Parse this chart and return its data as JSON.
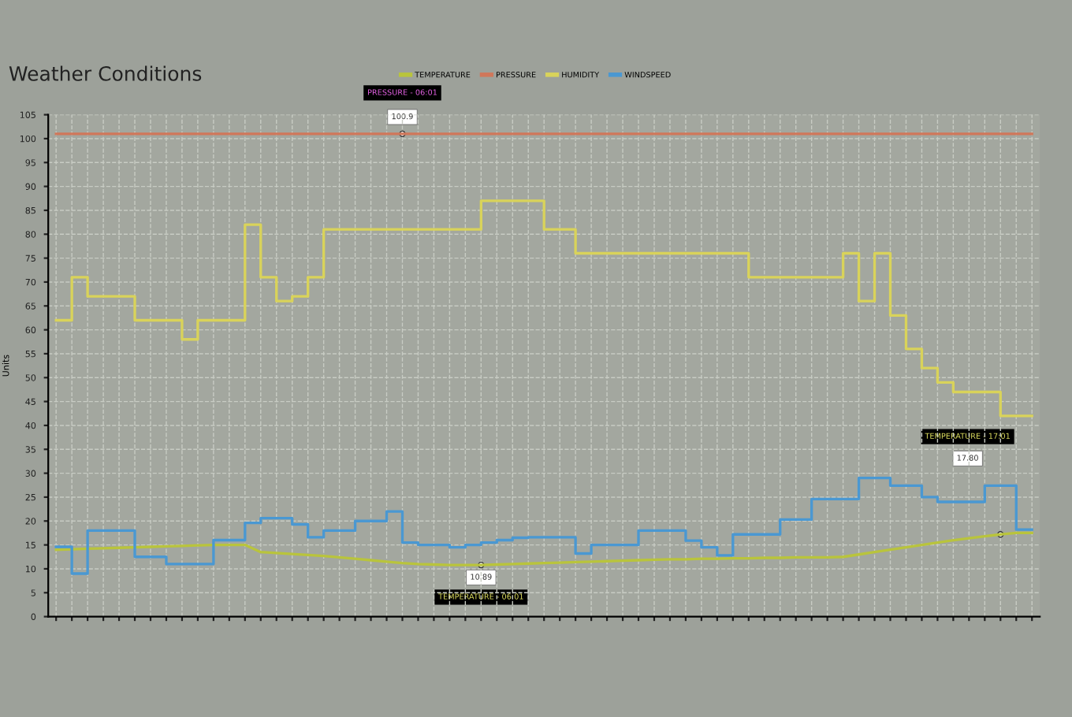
{
  "chart_data": {
    "type": "step",
    "title": "Weather Conditions",
    "ylabel": "Units",
    "categories": [
      null,
      null,
      null,
      null,
      null,
      null,
      null,
      null,
      null,
      null,
      null,
      null,
      null,
      null,
      null,
      null,
      null,
      null,
      null,
      null,
      null,
      null,
      null,
      null,
      null,
      null,
      null,
      null,
      null,
      null,
      null,
      null,
      null,
      null,
      null,
      null,
      null,
      null,
      null,
      null,
      null,
      null,
      null,
      null,
      null,
      null,
      null,
      null,
      null,
      null,
      null,
      null,
      null,
      null,
      null,
      null,
      null,
      null,
      null,
      null,
      null,
      null,
      null
    ],
    "series": [
      {
        "name": "TEMPERATURE",
        "color": "#b9c43c",
        "type": "line",
        "values": [
          14,
          14.1,
          14.2,
          14.3,
          14.4,
          14.5,
          14.6,
          14.7,
          14.8,
          14.9,
          15,
          15,
          15,
          13.5,
          13.3,
          13.1,
          12.9,
          12.7,
          12.4,
          12.1,
          11.8,
          11.5,
          11.2,
          11,
          10.9,
          10.8,
          10.8,
          10.8,
          10.9,
          11,
          11.1,
          11.2,
          11.3,
          11.4,
          11.5,
          11.6,
          11.7,
          11.8,
          11.9,
          12,
          12,
          12.1,
          12.1,
          12.2,
          12.2,
          12.3,
          12.3,
          12.4,
          12.4,
          12.4,
          12.5,
          13,
          13.5,
          14,
          14.5,
          15,
          15.5,
          16,
          16.4,
          16.8,
          17.2,
          17.5,
          17.5
        ]
      },
      {
        "name": "PRESSURE",
        "color": "#d0775a",
        "values": [
          101,
          101,
          101,
          101,
          101,
          101,
          101,
          101,
          101,
          101,
          101,
          101,
          101,
          101,
          101,
          101,
          101,
          101,
          101,
          101,
          101,
          101,
          101,
          101,
          101,
          101,
          101,
          101,
          101,
          101,
          101,
          101,
          101,
          101,
          101,
          101,
          101,
          101,
          101,
          101,
          101,
          101,
          101,
          101,
          101,
          101,
          101,
          101,
          101,
          101,
          101,
          101,
          101,
          101,
          101,
          101,
          101,
          101,
          101,
          101,
          101,
          101,
          101
        ]
      },
      {
        "name": "HUMIDITY",
        "color": "#d9d35a",
        "values": [
          62,
          71,
          67,
          67,
          67,
          62,
          62,
          62,
          58,
          62,
          62,
          62,
          82,
          71,
          66,
          67,
          71,
          81,
          81,
          81,
          81,
          81,
          81,
          81,
          81,
          81,
          81,
          87,
          87,
          87,
          87,
          81,
          81,
          76,
          76,
          76,
          76,
          76,
          76,
          76,
          76,
          76,
          76,
          76,
          71,
          71,
          71,
          71,
          71,
          71,
          76,
          66,
          76,
          63,
          56,
          52,
          49,
          47,
          47,
          47,
          42,
          42,
          42
        ]
      },
      {
        "name": "WINDSPEED",
        "color": "#4a98d2",
        "values": [
          14.6,
          9,
          18,
          18,
          18,
          12.5,
          12.5,
          11,
          11,
          11,
          16,
          16,
          19.6,
          20.6,
          20.6,
          19.3,
          16.6,
          18,
          18,
          20,
          20,
          22,
          15.5,
          15,
          15,
          14.5,
          15,
          15.5,
          16,
          16.5,
          16.6,
          16.6,
          16.6,
          13.2,
          15,
          15,
          15,
          18,
          18,
          18,
          15.9,
          14.5,
          12.8,
          17.2,
          17.2,
          17.2,
          20.3,
          20.3,
          24.6,
          24.6,
          24.6,
          29,
          29,
          27.4,
          27.4,
          25,
          24,
          24,
          24,
          27.4,
          27.4,
          18.2,
          18.2
        ]
      }
    ],
    "ylim": [
      0,
      105
    ],
    "yticks": [
      0,
      5,
      10,
      15,
      20,
      25,
      30,
      35,
      40,
      45,
      50,
      55,
      60,
      65,
      70,
      75,
      80,
      85,
      90,
      95,
      100,
      105
    ],
    "grid": true,
    "legend": "top",
    "marker": "none",
    "line_style": "solid",
    "annotations": [
      "PRESSURE - 06:01",
      "100.9",
      "TEMPERATURE - 06:01",
      "10.89",
      "TEMPERATURE - 17:01",
      "17.80"
    ]
  }
}
